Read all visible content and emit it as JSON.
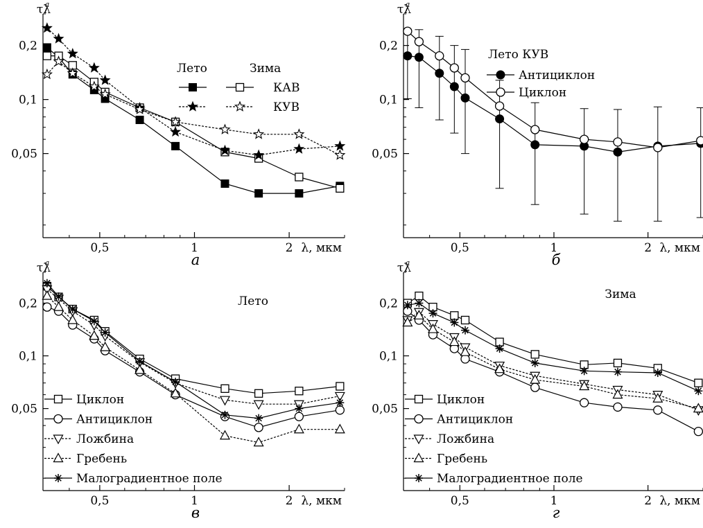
{
  "chart_data": [
    {
      "panel": "а",
      "type": "line",
      "ylabel": "τλ",
      "ysup": "a",
      "xlabel": "λ, мкм",
      "x_scale": "log",
      "y_scale": "log",
      "xlim": [
        0.33,
        3.0
      ],
      "ylim": [
        0.017,
        0.3
      ],
      "xticks": [
        {
          "v": 0.5,
          "label": "0,5"
        },
        {
          "v": 1,
          "label": "1"
        },
        {
          "v": 2,
          "label": "2"
        }
      ],
      "yticks": [
        {
          "v": 0.05,
          "label": "0,05"
        },
        {
          "v": 0.1,
          "label": "0,1"
        },
        {
          "v": 0.2,
          "label": "0,2"
        }
      ],
      "x": [
        0.34,
        0.37,
        0.41,
        0.48,
        0.52,
        0.67,
        0.87,
        1.25,
        1.6,
        2.15,
        2.9
      ],
      "series": [
        {
          "key": "kav_summer",
          "marker": "square-filled",
          "dash": "solid",
          "values": [
            0.195,
            0.172,
            0.138,
            0.113,
            0.101,
            0.077,
            0.055,
            0.034,
            0.03,
            0.03,
            0.033
          ]
        },
        {
          "key": "kav_winter",
          "marker": "square-open",
          "dash": "solid",
          "values": [
            0.175,
            0.175,
            0.155,
            0.125,
            0.11,
            0.09,
            0.075,
            0.051,
            0.047,
            0.037,
            0.032
          ]
        },
        {
          "key": "kuv_summer",
          "marker": "star-filled",
          "dash": "dashed",
          "values": [
            0.25,
            0.218,
            0.18,
            0.15,
            0.128,
            0.09,
            0.066,
            0.052,
            0.049,
            0.053,
            0.055
          ]
        },
        {
          "key": "kuv_winter",
          "marker": "star-open",
          "dash": "dashed",
          "values": [
            0.138,
            0.163,
            0.14,
            0.118,
            0.107,
            0.088,
            0.075,
            0.068,
            0.064,
            0.064,
            0.049
          ]
        }
      ],
      "legend": {
        "headers": [
          "Лето",
          "Зима"
        ],
        "rows": [
          {
            "label": "КАВ",
            "left": "kav_summer",
            "right": "kav_winter"
          },
          {
            "label": "КУВ",
            "left": "kuv_summer",
            "right": "kuv_winter"
          }
        ]
      }
    },
    {
      "panel": "б",
      "type": "line",
      "ylabel": "τλ",
      "ysup": "a",
      "xlabel": "λ, мкм",
      "x_scale": "log",
      "y_scale": "log",
      "xlim": [
        0.33,
        3.0
      ],
      "ylim": [
        0.017,
        0.3
      ],
      "xticks": [
        {
          "v": 0.5,
          "label": "0,5"
        },
        {
          "v": 1,
          "label": "1"
        },
        {
          "v": 2,
          "label": "2"
        }
      ],
      "yticks": [
        {
          "v": 0.05,
          "label": "0,05"
        },
        {
          "v": 0.1,
          "label": "0,1"
        },
        {
          "v": 0.2,
          "label": "0,2"
        }
      ],
      "title": "Лето КУВ",
      "x": [
        0.34,
        0.37,
        0.43,
        0.48,
        0.52,
        0.67,
        0.87,
        1.25,
        1.6,
        2.15,
        2.95
      ],
      "series": [
        {
          "key": "anticyclone",
          "name": "Антициклон",
          "marker": "circle-filled",
          "dash": "solid",
          "values": [
            0.175,
            0.172,
            0.14,
            0.118,
            0.102,
            0.078,
            0.056,
            0.055,
            0.051,
            0.055,
            0.057
          ]
        },
        {
          "key": "cyclone",
          "name": "Циклон",
          "marker": "circle-open",
          "dash": "solid",
          "values": [
            0.24,
            0.21,
            0.175,
            0.15,
            0.132,
            0.092,
            0.068,
            0.06,
            0.058,
            0.054,
            0.059
          ]
        }
      ],
      "error_bars": {
        "x": [
          0.34,
          0.37,
          0.43,
          0.48,
          0.52,
          0.67,
          0.87,
          1.25,
          1.6,
          2.15,
          2.95
        ],
        "low": [
          0.101,
          0.09,
          0.077,
          0.065,
          0.05,
          0.032,
          0.026,
          0.023,
          0.021,
          0.021,
          0.022
        ],
        "high": [
          0.245,
          0.245,
          0.225,
          0.2,
          0.19,
          0.128,
          0.096,
          0.089,
          0.088,
          0.091,
          0.09
        ]
      }
    },
    {
      "panel": "в",
      "type": "line",
      "ylabel": "τλ",
      "ysup": "a",
      "xlabel": "λ, мкм",
      "x_scale": "log",
      "y_scale": "log",
      "xlim": [
        0.33,
        3.0
      ],
      "ylim": [
        0.017,
        0.3
      ],
      "xticks": [
        {
          "v": 0.5,
          "label": "0,5"
        },
        {
          "v": 1,
          "label": "1"
        },
        {
          "v": 2,
          "label": "2"
        }
      ],
      "yticks": [
        {
          "v": 0.05,
          "label": "0,05"
        },
        {
          "v": 0.1,
          "label": "0,1"
        },
        {
          "v": 0.2,
          "label": "0,2"
        }
      ],
      "title": "Лето",
      "x": [
        0.34,
        0.37,
        0.41,
        0.48,
        0.52,
        0.67,
        0.87,
        1.25,
        1.6,
        2.15,
        2.9
      ],
      "series": [
        {
          "key": "cyclone",
          "name": "Циклон",
          "marker": "square-open",
          "dash": "solid",
          "values": [
            0.25,
            0.217,
            0.185,
            0.16,
            0.138,
            0.096,
            0.074,
            0.065,
            0.061,
            0.063,
            0.067
          ]
        },
        {
          "key": "anticyclone",
          "name": "Антициклон",
          "marker": "circle-open",
          "dash": "solid",
          "values": [
            0.19,
            0.18,
            0.15,
            0.125,
            0.107,
            0.081,
            0.06,
            0.045,
            0.039,
            0.045,
            0.049
          ]
        },
        {
          "key": "trough",
          "name": "Ложбина",
          "marker": "triangle-down-open",
          "dash": "dashed",
          "values": [
            0.24,
            0.212,
            0.18,
            0.15,
            0.13,
            0.092,
            0.07,
            0.056,
            0.053,
            0.053,
            0.059
          ]
        },
        {
          "key": "ridge",
          "name": "Гребень",
          "marker": "triangle-up-open",
          "dash": "dashed",
          "values": [
            0.22,
            0.19,
            0.16,
            0.13,
            0.112,
            0.083,
            0.061,
            0.035,
            0.032,
            0.038,
            0.038
          ]
        },
        {
          "key": "low_gradient",
          "name": "Малоградиентное поле",
          "marker": "asterisk",
          "dash": "solid",
          "values": [
            0.26,
            0.218,
            0.185,
            0.158,
            0.136,
            0.093,
            0.071,
            0.046,
            0.044,
            0.05,
            0.054
          ]
        }
      ]
    },
    {
      "panel": "г",
      "type": "line",
      "ylabel": "τλ",
      "ysup": "a",
      "xlabel": "λ, мкм",
      "x_scale": "log",
      "y_scale": "log",
      "xlim": [
        0.33,
        3.0
      ],
      "ylim": [
        0.017,
        0.3
      ],
      "xticks": [
        {
          "v": 0.5,
          "label": "0,5"
        },
        {
          "v": 1,
          "label": "1"
        },
        {
          "v": 2,
          "label": "2"
        }
      ],
      "yticks": [
        {
          "v": 0.05,
          "label": "0,05"
        },
        {
          "v": 0.1,
          "label": "0,1"
        },
        {
          "v": 0.2,
          "label": "0,2"
        }
      ],
      "title": "Зима",
      "x": [
        0.34,
        0.37,
        0.41,
        0.48,
        0.52,
        0.67,
        0.87,
        1.25,
        1.6,
        2.15,
        2.9
      ],
      "series": [
        {
          "key": "cyclone",
          "name": "Циклон",
          "marker": "square-open",
          "dash": "solid",
          "values": [
            0.2,
            0.22,
            0.19,
            0.17,
            0.16,
            0.12,
            0.102,
            0.089,
            0.091,
            0.085,
            0.07
          ]
        },
        {
          "key": "anticyclone",
          "name": "Антициклон",
          "marker": "circle-open",
          "dash": "solid",
          "values": [
            0.18,
            0.16,
            0.132,
            0.11,
            0.096,
            0.081,
            0.066,
            0.054,
            0.051,
            0.049,
            0.037
          ]
        },
        {
          "key": "trough",
          "name": "Ложбина",
          "marker": "triangle-down-open",
          "dash": "dashed",
          "values": [
            0.16,
            0.178,
            0.152,
            0.128,
            0.112,
            0.088,
            0.077,
            0.069,
            0.064,
            0.06,
            0.049
          ]
        },
        {
          "key": "ridge",
          "name": "Гребень",
          "marker": "triangle-up-open",
          "dash": "dashed",
          "values": [
            0.155,
            0.17,
            0.142,
            0.12,
            0.105,
            0.084,
            0.073,
            0.067,
            0.06,
            0.057,
            0.05
          ]
        },
        {
          "key": "low_gradient",
          "name": "Малоградиентное поле",
          "marker": "asterisk",
          "dash": "solid",
          "values": [
            0.195,
            0.2,
            0.175,
            0.155,
            0.14,
            0.11,
            0.091,
            0.082,
            0.081,
            0.08,
            0.063
          ]
        }
      ]
    }
  ]
}
